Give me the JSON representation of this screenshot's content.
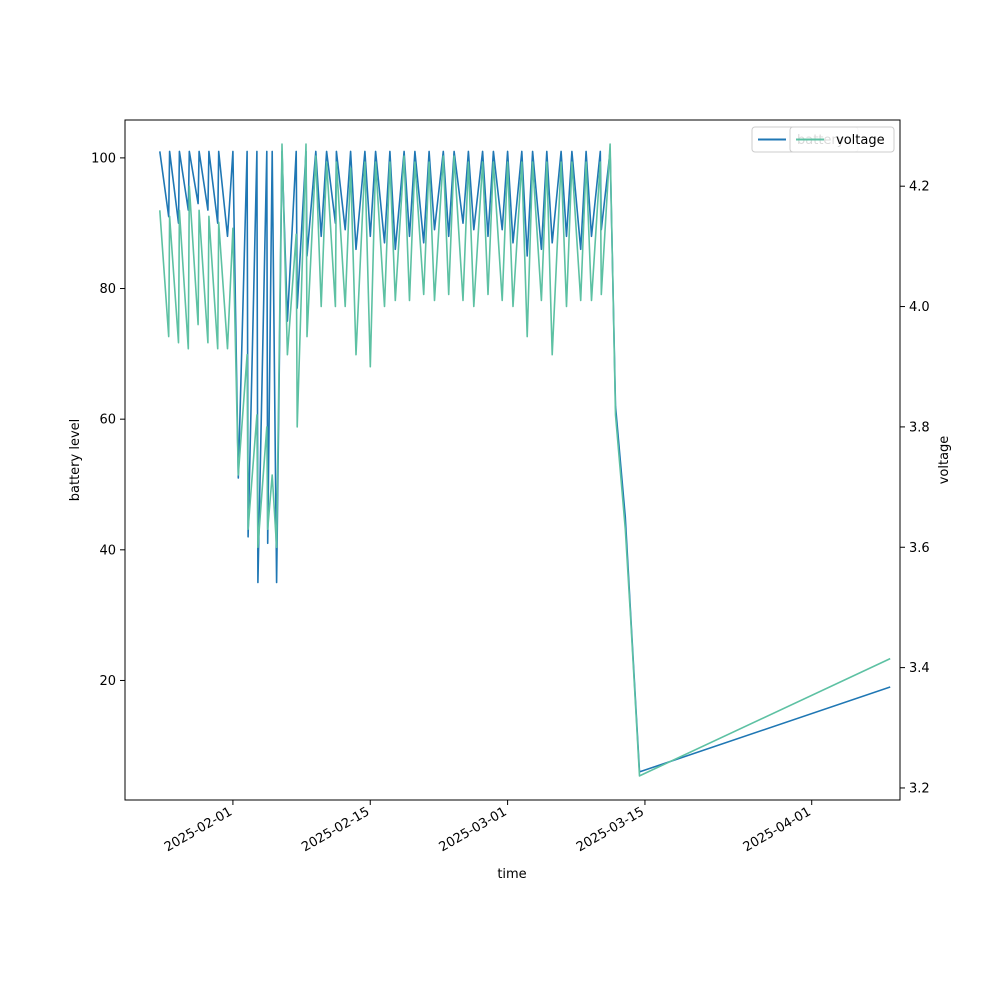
{
  "chart_data": {
    "type": "line",
    "xlabel": "time",
    "ylabel_left": "battery level",
    "ylabel_right": "voltage",
    "xlim": [
      "2025-01-21",
      "2025-04-10"
    ],
    "ylim_left": [
      1.7,
      105.8
    ],
    "ylim_right": [
      3.18,
      4.31
    ],
    "x_ticks": [
      "2025-02-01",
      "2025-02-15",
      "2025-03-01",
      "2025-03-15",
      "2025-04-01"
    ],
    "y_ticks_left": [
      20,
      40,
      60,
      80,
      100
    ],
    "y_ticks_right": [
      "3.2",
      "3.4",
      "3.6",
      "3.8",
      "4.0",
      "4.2"
    ],
    "grid": false,
    "legends": [
      {
        "placement": "upper-right",
        "entries": [
          "battery"
        ]
      },
      {
        "placement": "upper-right",
        "entries": [
          "voltage"
        ]
      }
    ],
    "series": [
      {
        "name": "battery",
        "axis": "left",
        "color": "#1f77b4",
        "points": [
          [
            "2025-01-25",
            101
          ],
          [
            "2025-01-25",
            91
          ],
          [
            "2025-01-26",
            101
          ],
          [
            "2025-01-26",
            90
          ],
          [
            "2025-01-27",
            101
          ],
          [
            "2025-01-27",
            92
          ],
          [
            "2025-01-28",
            101
          ],
          [
            "2025-01-28",
            93
          ],
          [
            "2025-01-29",
            101
          ],
          [
            "2025-01-29",
            92
          ],
          [
            "2025-01-30",
            101
          ],
          [
            "2025-01-30",
            90
          ],
          [
            "2025-01-31",
            101
          ],
          [
            "2025-01-31",
            88
          ],
          [
            "2025-02-01",
            101
          ],
          [
            "2025-02-02",
            51
          ],
          [
            "2025-02-02",
            101
          ],
          [
            "2025-02-03",
            42
          ],
          [
            "2025-02-03",
            101
          ],
          [
            "2025-02-04",
            35
          ],
          [
            "2025-02-04",
            101
          ],
          [
            "2025-02-05",
            41
          ],
          [
            "2025-02-05",
            101
          ],
          [
            "2025-02-05",
            35
          ],
          [
            "2025-02-06",
            101
          ],
          [
            "2025-02-07",
            75
          ],
          [
            "2025-02-07",
            101
          ],
          [
            "2025-02-08",
            77
          ],
          [
            "2025-02-08",
            101
          ],
          [
            "2025-02-09",
            85
          ],
          [
            "2025-02-09",
            101
          ],
          [
            "2025-02-10",
            88
          ],
          [
            "2025-02-11",
            101
          ],
          [
            "2025-02-11",
            90
          ],
          [
            "2025-02-12",
            101
          ],
          [
            "2025-02-12",
            89
          ],
          [
            "2025-02-13",
            101
          ],
          [
            "2025-02-14",
            86
          ],
          [
            "2025-02-14",
            101
          ],
          [
            "2025-02-15",
            88
          ],
          [
            "2025-02-16",
            101
          ],
          [
            "2025-02-16",
            87
          ],
          [
            "2025-02-17",
            101
          ],
          [
            "2025-02-18",
            86
          ],
          [
            "2025-02-18",
            101
          ],
          [
            "2025-02-19",
            88
          ],
          [
            "2025-02-20",
            101
          ],
          [
            "2025-02-20",
            87
          ],
          [
            "2025-02-21",
            101
          ],
          [
            "2025-02-22",
            89
          ],
          [
            "2025-02-22",
            101
          ],
          [
            "2025-02-23",
            88
          ],
          [
            "2025-02-24",
            101
          ],
          [
            "2025-02-24",
            90
          ],
          [
            "2025-02-25",
            101
          ],
          [
            "2025-02-26",
            89
          ],
          [
            "2025-02-26",
            101
          ],
          [
            "2025-02-27",
            88
          ],
          [
            "2025-02-28",
            101
          ],
          [
            "2025-02-28",
            89
          ],
          [
            "2025-03-01",
            101
          ],
          [
            "2025-03-02",
            87
          ],
          [
            "2025-03-02",
            101
          ],
          [
            "2025-03-03",
            85
          ],
          [
            "2025-03-04",
            101
          ],
          [
            "2025-03-04",
            86
          ],
          [
            "2025-03-05",
            101
          ],
          [
            "2025-03-06",
            87
          ],
          [
            "2025-03-06",
            101
          ],
          [
            "2025-03-07",
            88
          ],
          [
            "2025-03-08",
            101
          ],
          [
            "2025-03-08",
            86
          ],
          [
            "2025-03-09",
            101
          ],
          [
            "2025-03-10",
            88
          ],
          [
            "2025-03-10",
            101
          ],
          [
            "2025-03-11",
            89
          ],
          [
            "2025-03-11",
            101
          ],
          [
            "2025-03-12",
            62
          ],
          [
            "2025-03-13",
            45
          ],
          [
            "2025-03-14",
            30
          ],
          [
            "2025-03-14",
            6
          ],
          [
            "2025-04-09",
            19
          ]
        ]
      },
      {
        "name": "voltage",
        "axis": "right",
        "color": "#5dc1a3",
        "points": [
          [
            "2025-01-25",
            4.16
          ],
          [
            "2025-01-25",
            3.95
          ],
          [
            "2025-01-26",
            4.15
          ],
          [
            "2025-01-26",
            3.94
          ],
          [
            "2025-01-27",
            4.16
          ],
          [
            "2025-01-27",
            3.93
          ],
          [
            "2025-01-28",
            4.2
          ],
          [
            "2025-01-28",
            3.97
          ],
          [
            "2025-01-29",
            4.16
          ],
          [
            "2025-01-29",
            3.94
          ],
          [
            "2025-01-30",
            4.15
          ],
          [
            "2025-01-30",
            3.93
          ],
          [
            "2025-01-31",
            4.14
          ],
          [
            "2025-01-31",
            3.93
          ],
          [
            "2025-02-01",
            4.13
          ],
          [
            "2025-02-02",
            3.72
          ],
          [
            "2025-02-02",
            3.92
          ],
          [
            "2025-02-03",
            3.63
          ],
          [
            "2025-02-03",
            3.82
          ],
          [
            "2025-02-04",
            3.6
          ],
          [
            "2025-02-04",
            3.8
          ],
          [
            "2025-02-05",
            3.63
          ],
          [
            "2025-02-05",
            3.72
          ],
          [
            "2025-02-05",
            3.6
          ],
          [
            "2025-02-06",
            4.27
          ],
          [
            "2025-02-07",
            3.92
          ],
          [
            "2025-02-07",
            4.12
          ],
          [
            "2025-02-08",
            3.8
          ],
          [
            "2025-02-08",
            4.27
          ],
          [
            "2025-02-09",
            3.95
          ],
          [
            "2025-02-09",
            4.25
          ],
          [
            "2025-02-10",
            4.0
          ],
          [
            "2025-02-11",
            4.24
          ],
          [
            "2025-02-11",
            4.0
          ],
          [
            "2025-02-12",
            4.24
          ],
          [
            "2025-02-12",
            4.0
          ],
          [
            "2025-02-13",
            4.23
          ],
          [
            "2025-02-14",
            3.92
          ],
          [
            "2025-02-14",
            4.24
          ],
          [
            "2025-02-15",
            3.9
          ],
          [
            "2025-02-16",
            4.24
          ],
          [
            "2025-02-16",
            4.0
          ],
          [
            "2025-02-17",
            4.24
          ],
          [
            "2025-02-18",
            4.01
          ],
          [
            "2025-02-18",
            4.25
          ],
          [
            "2025-02-19",
            4.01
          ],
          [
            "2025-02-20",
            4.24
          ],
          [
            "2025-02-20",
            4.02
          ],
          [
            "2025-02-21",
            4.24
          ],
          [
            "2025-02-22",
            4.01
          ],
          [
            "2025-02-22",
            4.25
          ],
          [
            "2025-02-23",
            4.02
          ],
          [
            "2025-02-24",
            4.25
          ],
          [
            "2025-02-24",
            4.01
          ],
          [
            "2025-02-25",
            4.24
          ],
          [
            "2025-02-26",
            4.0
          ],
          [
            "2025-02-26",
            4.24
          ],
          [
            "2025-02-27",
            4.02
          ],
          [
            "2025-02-28",
            4.24
          ],
          [
            "2025-02-28",
            4.01
          ],
          [
            "2025-03-01",
            4.24
          ],
          [
            "2025-03-02",
            4.0
          ],
          [
            "2025-03-02",
            4.24
          ],
          [
            "2025-03-03",
            3.95
          ],
          [
            "2025-03-04",
            4.24
          ],
          [
            "2025-03-04",
            4.01
          ],
          [
            "2025-03-05",
            4.24
          ],
          [
            "2025-03-06",
            3.92
          ],
          [
            "2025-03-06",
            4.24
          ],
          [
            "2025-03-07",
            4.0
          ],
          [
            "2025-03-08",
            4.24
          ],
          [
            "2025-03-08",
            4.01
          ],
          [
            "2025-03-09",
            4.24
          ],
          [
            "2025-03-10",
            4.01
          ],
          [
            "2025-03-10",
            4.24
          ],
          [
            "2025-03-11",
            4.02
          ],
          [
            "2025-03-11",
            4.27
          ],
          [
            "2025-03-12",
            3.82
          ],
          [
            "2025-03-13",
            3.63
          ],
          [
            "2025-03-14",
            3.48
          ],
          [
            "2025-03-14",
            3.22
          ],
          [
            "2025-04-09",
            3.415
          ]
        ]
      }
    ]
  }
}
